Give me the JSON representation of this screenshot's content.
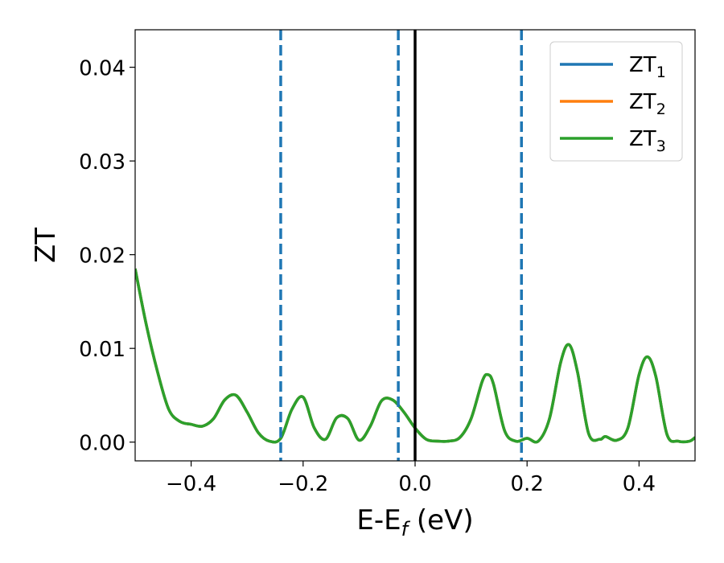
{
  "chart_data": {
    "type": "line",
    "xlabel_main": "E-E",
    "xlabel_sub": "f",
    "xlabel_unit": " (eV)",
    "ylabel": "ZT",
    "xlim": [
      -0.5,
      0.5
    ],
    "ylim": [
      -0.002,
      0.044
    ],
    "x_ticks": [
      -0.4,
      -0.2,
      0.0,
      0.2,
      0.4
    ],
    "x_tick_labels": [
      "−0.4",
      "−0.2",
      "0.0",
      "0.2",
      "0.4"
    ],
    "y_ticks": [
      0.0,
      0.01,
      0.02,
      0.03,
      0.04
    ],
    "y_tick_labels": [
      "0.00",
      "0.01",
      "0.02",
      "0.03",
      "0.04"
    ],
    "grid": false,
    "legend_position": "top-right",
    "vlines": [
      {
        "x": -0.24,
        "style": "dashed",
        "color": "#1f77b4"
      },
      {
        "x": -0.03,
        "style": "dashed",
        "color": "#1f77b4"
      },
      {
        "x": 0.0,
        "style": "solid",
        "color": "#000000"
      },
      {
        "x": 0.19,
        "style": "dashed",
        "color": "#1f77b4"
      }
    ],
    "series": [
      {
        "name": "ZT",
        "sub": "1",
        "color": "#1f77b4"
      },
      {
        "name": "ZT",
        "sub": "2",
        "color": "#ff7f0e"
      },
      {
        "name": "ZT",
        "sub": "3",
        "color": "#2ca02c"
      }
    ],
    "x": [
      -0.5,
      -0.48,
      -0.46,
      -0.44,
      -0.42,
      -0.4,
      -0.38,
      -0.36,
      -0.34,
      -0.32,
      -0.3,
      -0.28,
      -0.26,
      -0.24,
      -0.22,
      -0.2,
      -0.18,
      -0.16,
      -0.14,
      -0.12,
      -0.1,
      -0.08,
      -0.06,
      -0.04,
      -0.02,
      0.0,
      0.02,
      0.04,
      0.06,
      0.08,
      0.1,
      0.12,
      0.13,
      0.14,
      0.16,
      0.18,
      0.2,
      0.22,
      0.24,
      0.26,
      0.275,
      0.29,
      0.31,
      0.33,
      0.34,
      0.36,
      0.38,
      0.4,
      0.415,
      0.43,
      0.45,
      0.47,
      0.49,
      0.5
    ],
    "y": [
      0.0185,
      0.0125,
      0.0075,
      0.0035,
      0.0022,
      0.0019,
      0.0017,
      0.0025,
      0.0045,
      0.005,
      0.0032,
      0.001,
      0.0001,
      0.0004,
      0.0035,
      0.0048,
      0.0015,
      0.0003,
      0.0026,
      0.0025,
      0.0002,
      0.0017,
      0.0044,
      0.0045,
      0.0032,
      0.0015,
      0.0003,
      0.0001,
      0.0001,
      0.0005,
      0.0025,
      0.0065,
      0.0072,
      0.0062,
      0.0012,
      0.0001,
      0.0004,
      0.0001,
      0.0025,
      0.0085,
      0.0104,
      0.0075,
      0.0009,
      0.0003,
      0.0006,
      0.0002,
      0.0015,
      0.0072,
      0.0091,
      0.007,
      0.0008,
      0.0001,
      0.0001,
      0.0005
    ]
  }
}
